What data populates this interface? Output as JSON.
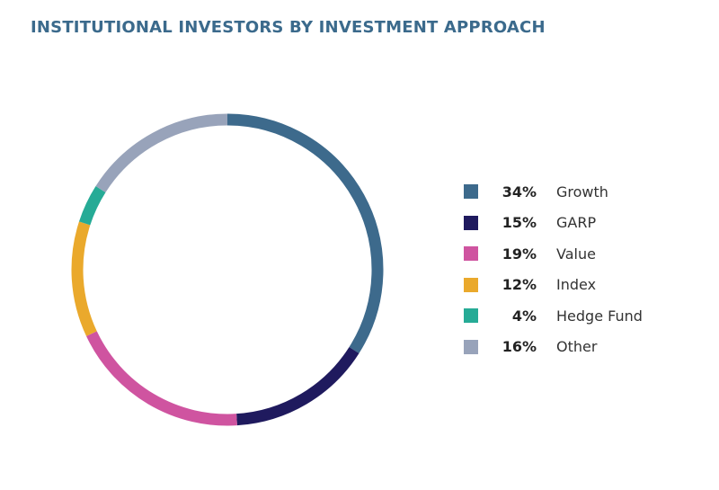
{
  "title": "INSTITUTIONAL INVESTORS BY INVESTMENT APPROACH",
  "chart_data": {
    "type": "pie",
    "variant": "donut",
    "title": "INSTITUTIONAL INVESTORS BY INVESTMENT APPROACH",
    "legend_position": "right",
    "start_angle": "top",
    "direction": "clockwise",
    "slices": [
      {
        "label": "Growth",
        "value": 34,
        "display": "34%",
        "color": "#3d6a8c"
      },
      {
        "label": "GARP",
        "value": 15,
        "display": "15%",
        "color": "#1f1a5e"
      },
      {
        "label": "Value",
        "value": 19,
        "display": "19%",
        "color": "#cf54a0"
      },
      {
        "label": "Index",
        "value": 12,
        "display": "12%",
        "color": "#eaa92c"
      },
      {
        "label": "Hedge Fund",
        "value": 4,
        "display": "4%",
        "color": "#26ab96"
      },
      {
        "label": "Other",
        "value": 16,
        "display": "16%",
        "color": "#98a3ba"
      }
    ]
  }
}
